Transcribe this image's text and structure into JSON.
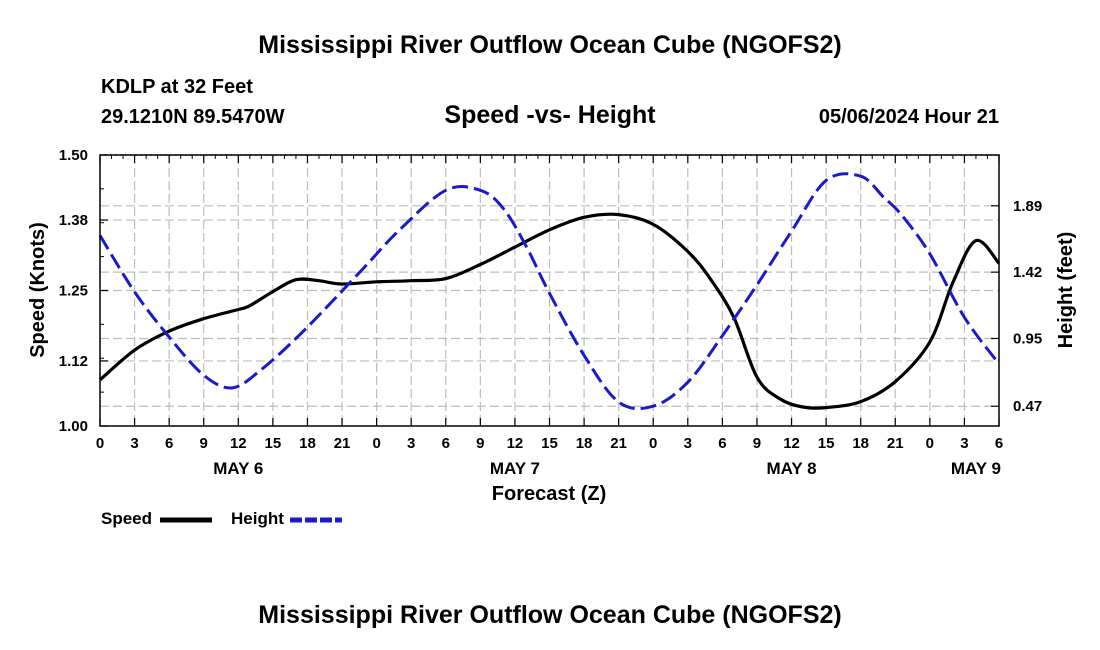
{
  "chart_data": {
    "type": "line",
    "title": "Mississippi River Outflow Ocean Cube (NGOFS2)",
    "title_repeat": "Mississippi River Outflow Ocean Cube (NGOFS2)",
    "station": "KDLP at 32 Feet",
    "coordinates": "29.1210N  89.5470W",
    "subtitle": "Speed -vs- Height",
    "datetime": "05/06/2024 Hour 21",
    "xlabel": "Forecast (Z)",
    "ylabel_left": "Speed (Knots)",
    "ylabel_right": "Height (feet)",
    "x_range_hours": [
      0,
      78
    ],
    "x_tick_labels": [
      "0",
      "3",
      "6",
      "9",
      "12",
      "15",
      "18",
      "21",
      "0",
      "3",
      "6",
      "9",
      "12",
      "15",
      "18",
      "21",
      "0",
      "3",
      "6",
      "9",
      "12",
      "15",
      "18",
      "21",
      "0",
      "3",
      "6"
    ],
    "day_labels": [
      {
        "label": "MAY 6",
        "hour": 12
      },
      {
        "label": "MAY 7",
        "hour": 36
      },
      {
        "label": "MAY 8",
        "hour": 60
      },
      {
        "label": "MAY 9",
        "hour": 76
      }
    ],
    "y_left": {
      "range": [
        1.0,
        1.5
      ],
      "ticks": [
        1.0,
        1.12,
        1.25,
        1.38,
        1.5
      ],
      "tick_labels": [
        "1.00",
        "1.12",
        "1.25",
        "1.38",
        "1.50"
      ]
    },
    "y_right": {
      "range": [
        0.33,
        2.25
      ],
      "ticks": [
        0.47,
        0.95,
        1.42,
        1.89
      ],
      "tick_labels": [
        "0.47",
        "0.95",
        "1.42",
        "1.89"
      ]
    },
    "series": [
      {
        "name": "Speed",
        "axis": "left",
        "color": "#000000",
        "style": "solid",
        "x": [
          0,
          3,
          6,
          9,
          12,
          13,
          15,
          17,
          19,
          21,
          24,
          27,
          30,
          33,
          36,
          39,
          42,
          45,
          48,
          51,
          53,
          55,
          57,
          59,
          61,
          63,
          66,
          69,
          72,
          74,
          76,
          78
        ],
        "values": [
          1.085,
          1.14,
          1.175,
          1.198,
          1.215,
          1.222,
          1.248,
          1.27,
          1.268,
          1.262,
          1.266,
          1.268,
          1.272,
          1.298,
          1.33,
          1.362,
          1.385,
          1.39,
          1.372,
          1.322,
          1.27,
          1.2,
          1.09,
          1.05,
          1.035,
          1.034,
          1.045,
          1.082,
          1.155,
          1.265,
          1.342,
          1.3
        ]
      },
      {
        "name": "Height",
        "axis": "right",
        "color": "#1a1acc",
        "style": "dashed",
        "x": [
          0,
          3,
          6,
          9,
          11.5,
          14,
          17,
          20,
          23,
          26,
          30,
          33,
          35,
          37,
          39,
          42,
          45,
          48,
          51,
          54,
          57,
          60,
          63,
          66,
          68,
          69.5,
          72,
          75,
          78
        ],
        "values": [
          1.68,
          1.28,
          0.96,
          0.69,
          0.6,
          0.73,
          0.95,
          1.2,
          1.46,
          1.72,
          2.0,
          2.0,
          1.87,
          1.6,
          1.27,
          0.83,
          0.5,
          0.47,
          0.64,
          0.97,
          1.33,
          1.71,
          2.07,
          2.1,
          1.95,
          1.83,
          1.55,
          1.1,
          0.77
        ]
      }
    ],
    "legend": {
      "position": "bottom-left",
      "items": [
        {
          "label": "Speed",
          "color": "#000000",
          "style": "solid"
        },
        {
          "label": "Height",
          "color": "#1a1acc",
          "style": "dashed"
        }
      ]
    }
  }
}
